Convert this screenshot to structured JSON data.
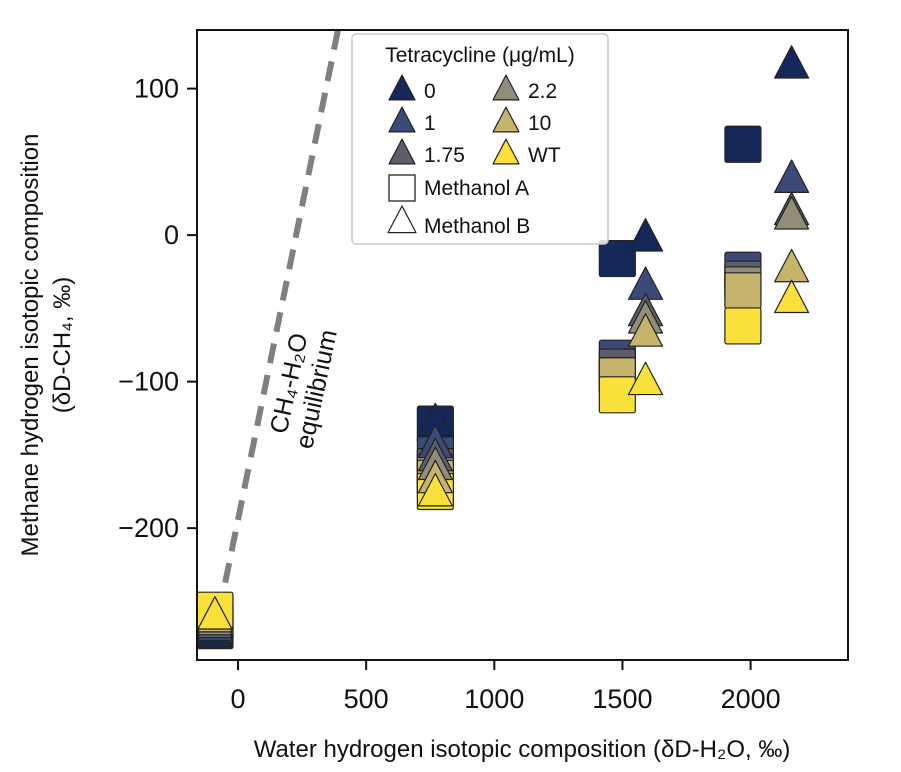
{
  "chart_data": {
    "type": "scatter",
    "xlabel": "Water hydrogen isotopic composition (δD-H₂O, ‰)",
    "ylabel_line1": "Methane hydrogen isotopic composition",
    "ylabel_line2": "(δD-CH₄, ‰)",
    "xlim": [
      -160,
      2380
    ],
    "ylim": [
      -290,
      140
    ],
    "xticks": [
      0,
      500,
      1000,
      1500,
      2000
    ],
    "xtick_labels": [
      "0",
      "500",
      "1000",
      "1500",
      "2000"
    ],
    "yticks": [
      100,
      0,
      -100,
      -200
    ],
    "ytick_labels": [
      "100",
      "0",
      "−100",
      "−200"
    ],
    "legend": {
      "title": "Tetracycline (μg/mL)",
      "placement": "top-center",
      "markers_note": "square = Methanol A, triangle = Methanol B",
      "method_labels": {
        "A": "Methanol A",
        "B": "Methanol B"
      }
    },
    "equilibrium_line": {
      "label_line1": "CH₄-H₂O",
      "label_line2": "equilibrium",
      "style": "dashed",
      "color": "#808080",
      "points": [
        [
          -100,
          -280
        ],
        [
          390,
          140
        ]
      ]
    },
    "series": [
      {
        "name": "0",
        "color": "#14295a",
        "methanol_A": [
          [
            -90,
            -270
          ],
          [
            770,
            -129
          ],
          [
            1480,
            -16
          ],
          [
            1970,
            62
          ]
        ],
        "methanol_B": [
          [
            -90,
            -272
          ],
          [
            770,
            -128
          ],
          [
            1590,
            -2
          ],
          [
            2160,
            116
          ]
        ]
      },
      {
        "name": "1",
        "color": "#3c4a78",
        "methanol_A": [
          [
            -90,
            -266
          ],
          [
            770,
            -150
          ],
          [
            1480,
            -84
          ],
          [
            1970,
            -24
          ]
        ],
        "methanol_B": [
          [
            -90,
            -268
          ],
          [
            770,
            -143
          ],
          [
            1590,
            -35
          ],
          [
            2160,
            38
          ]
        ]
      },
      {
        "name": "1.75",
        "color": "#5d5e6c",
        "methanol_A": [
          [
            -90,
            -264
          ],
          [
            770,
            -158
          ],
          [
            1480,
            -90
          ],
          [
            1970,
            -30
          ]
        ],
        "methanol_B": [
          [
            -90,
            -266
          ],
          [
            770,
            -152
          ],
          [
            1590,
            -53
          ],
          [
            2160,
            16
          ]
        ]
      },
      {
        "name": "2.2",
        "color": "#928d78",
        "methanol_A": [
          [
            -90,
            -262
          ],
          [
            770,
            -162
          ],
          [
            1480,
            -96
          ],
          [
            1970,
            -34
          ]
        ],
        "methanol_B": [
          [
            -90,
            -264
          ],
          [
            770,
            -158
          ],
          [
            1590,
            -58
          ],
          [
            2160,
            13
          ]
        ]
      },
      {
        "name": "10",
        "color": "#c6b46c",
        "methanol_A": [
          [
            -90,
            -261
          ],
          [
            770,
            -166
          ],
          [
            1480,
            -96
          ],
          [
            1970,
            -38
          ]
        ],
        "methanol_B": [
          [
            -90,
            -262
          ],
          [
            770,
            -167
          ],
          [
            1590,
            -67
          ],
          [
            2160,
            -23
          ]
        ]
      },
      {
        "name": "WT",
        "color": "#f9e03a",
        "methanol_A": [
          [
            -90,
            -256
          ],
          [
            770,
            -175
          ],
          [
            1480,
            -109
          ],
          [
            1970,
            -62
          ]
        ],
        "methanol_B": [
          [
            -90,
            -260
          ],
          [
            770,
            -176
          ],
          [
            1590,
            -100
          ],
          [
            2160,
            -44
          ]
        ]
      }
    ]
  }
}
